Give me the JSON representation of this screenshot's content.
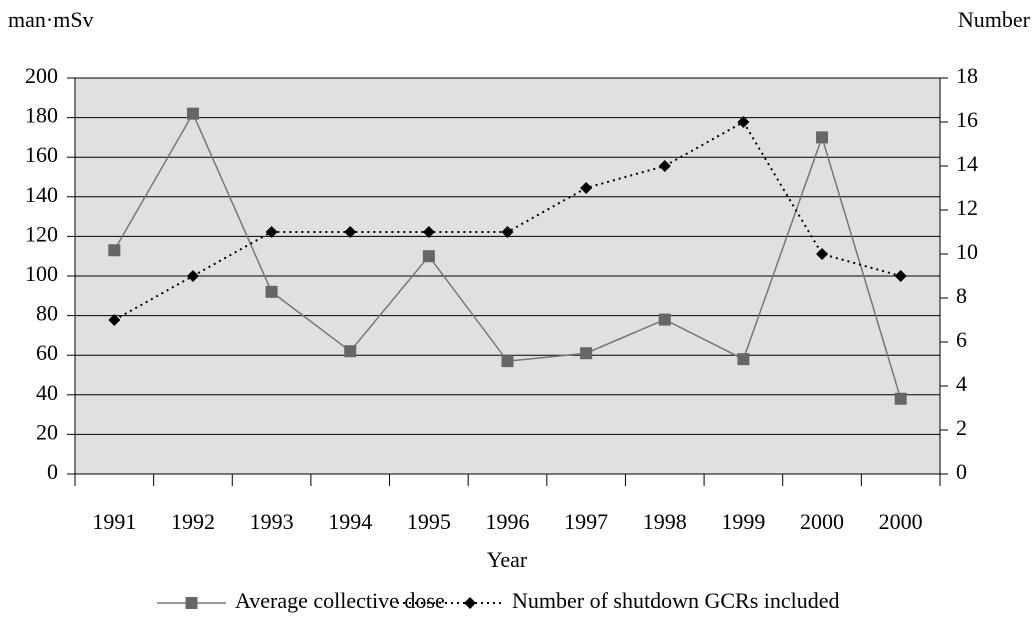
{
  "chart_data": {
    "type": "line",
    "y_label": "man·mSv",
    "y2_label": "Number",
    "x_label": "Year",
    "categories": [
      "1991",
      "1992",
      "1993",
      "1994",
      "1995",
      "1996",
      "1997",
      "1998",
      "1999",
      "2000",
      "2000"
    ],
    "series": [
      {
        "name": "Average collective dose",
        "color": "#777777",
        "marker": "square",
        "values": [
          113,
          182,
          92,
          62,
          110,
          57,
          61,
          78,
          58,
          170,
          38
        ]
      },
      {
        "name": "Number of shutdown GCRs included",
        "color": "#000000",
        "marker": "diamond",
        "dash": "dotted",
        "axis": "y2",
        "values": [
          7,
          9,
          11,
          11,
          11,
          11,
          13,
          14,
          16,
          10,
          9
        ]
      }
    ],
    "ylim": [
      0,
      200
    ],
    "yticks": [
      0,
      20,
      40,
      60,
      80,
      100,
      120,
      140,
      160,
      180,
      200
    ],
    "y2lim": [
      0,
      18
    ],
    "y2ticks": [
      0,
      2,
      4,
      6,
      8,
      10,
      12,
      14,
      16,
      18
    ],
    "grid": true,
    "legend": "bottom"
  }
}
